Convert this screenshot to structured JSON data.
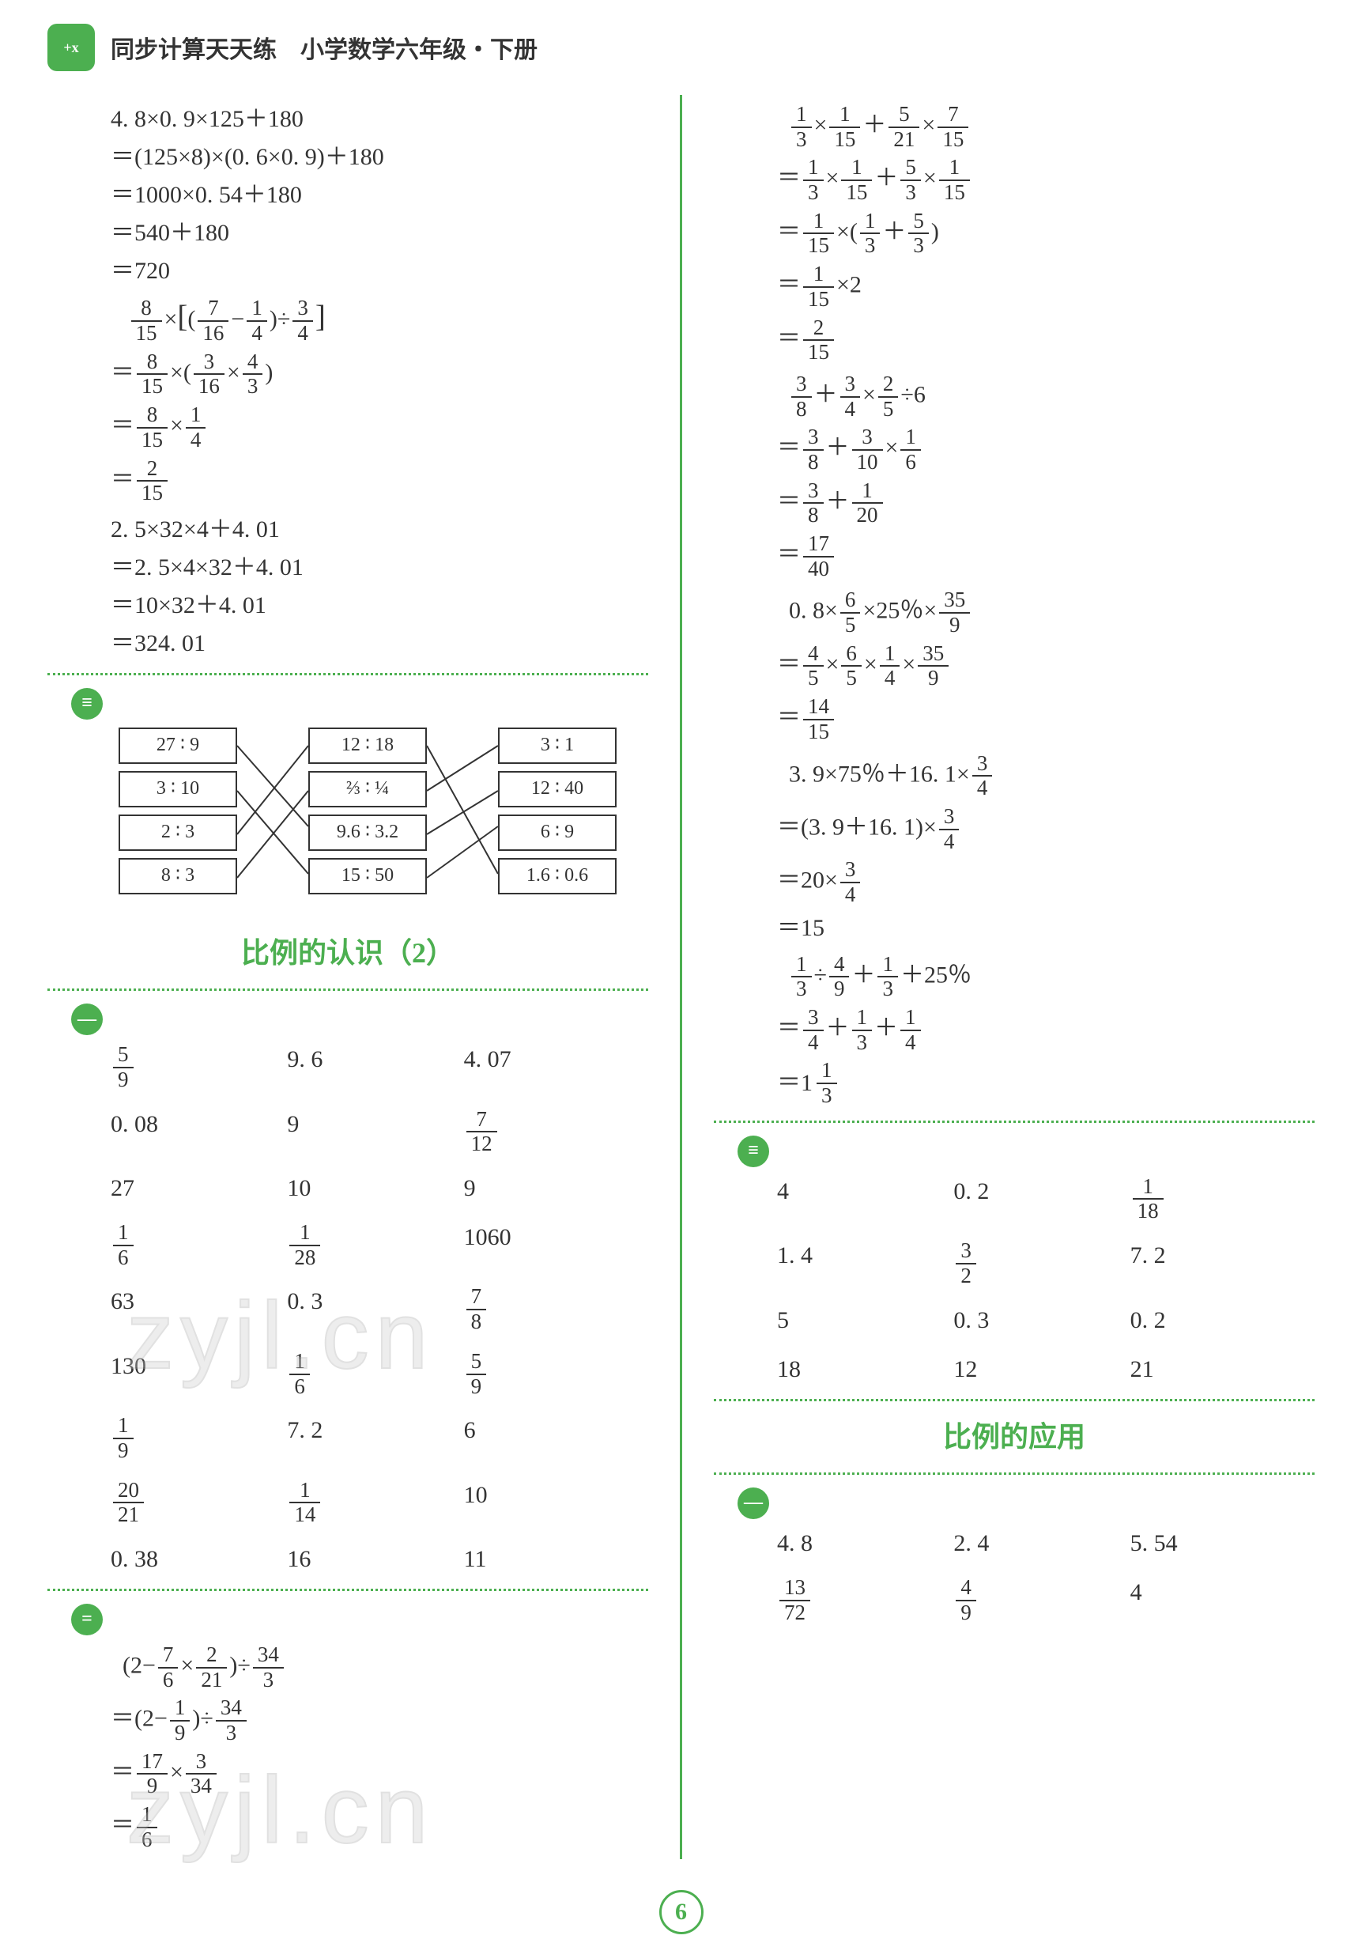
{
  "header": {
    "logo_text": "+x",
    "title": "同步计算天天练　小学数学六年级・下册"
  },
  "page_number": "6",
  "watermark": "zyjl.cn",
  "left_col": {
    "block1_lines": [
      "4. 8×0. 9×125＋180",
      "＝(125×8)×(0. 6×0. 9)＋180",
      "＝1000×0. 54＋180",
      "＝540＋180",
      "＝720"
    ],
    "block3_lines": [
      "2. 5×32×4＋4. 01",
      "＝2. 5×4×32＋4. 01",
      "＝10×32＋4. 01",
      "＝324. 01"
    ],
    "match": {
      "colA": [
        "27 ∶ 9",
        "3 ∶ 10",
        "2 ∶ 3",
        "8 ∶ 3"
      ],
      "colB": [
        "12 ∶ 18",
        "⅔ ∶ ¼",
        "9.6 ∶ 3.2",
        "15 ∶ 50"
      ],
      "colC": [
        "3 ∶ 1",
        "12 ∶ 40",
        "6 ∶ 9",
        "1.6 ∶ 0.6"
      ]
    },
    "sec_title": "比例的认识（2）",
    "ans1": [
      "frac:5/9",
      "9. 6",
      "4. 07",
      "0. 08",
      "9",
      "frac:7/12",
      "27",
      "10",
      "9",
      "frac:1/6",
      "frac:1/28",
      "1060",
      "63",
      "0. 3",
      "frac:7/8",
      "130",
      "frac:1/6",
      "frac:5/9",
      "frac:1/9",
      "7. 2",
      "6",
      "frac:20/21",
      "frac:1/14",
      "10",
      "0. 38",
      "16",
      "11"
    ]
  },
  "right_col": {
    "sec_title": "比例的应用",
    "ans3": [
      "4",
      "0. 2",
      "frac:1/18",
      "1. 4",
      "frac:3/2",
      "7. 2",
      "5",
      "0. 3",
      "0. 2",
      "18",
      "12",
      "21"
    ],
    "ans4": [
      "4. 8",
      "2. 4",
      "5. 54",
      "frac:13/72",
      "frac:4/9",
      "4"
    ]
  },
  "colors": {
    "accent": "#4caf50",
    "text": "#333333",
    "bg": "#ffffff"
  }
}
